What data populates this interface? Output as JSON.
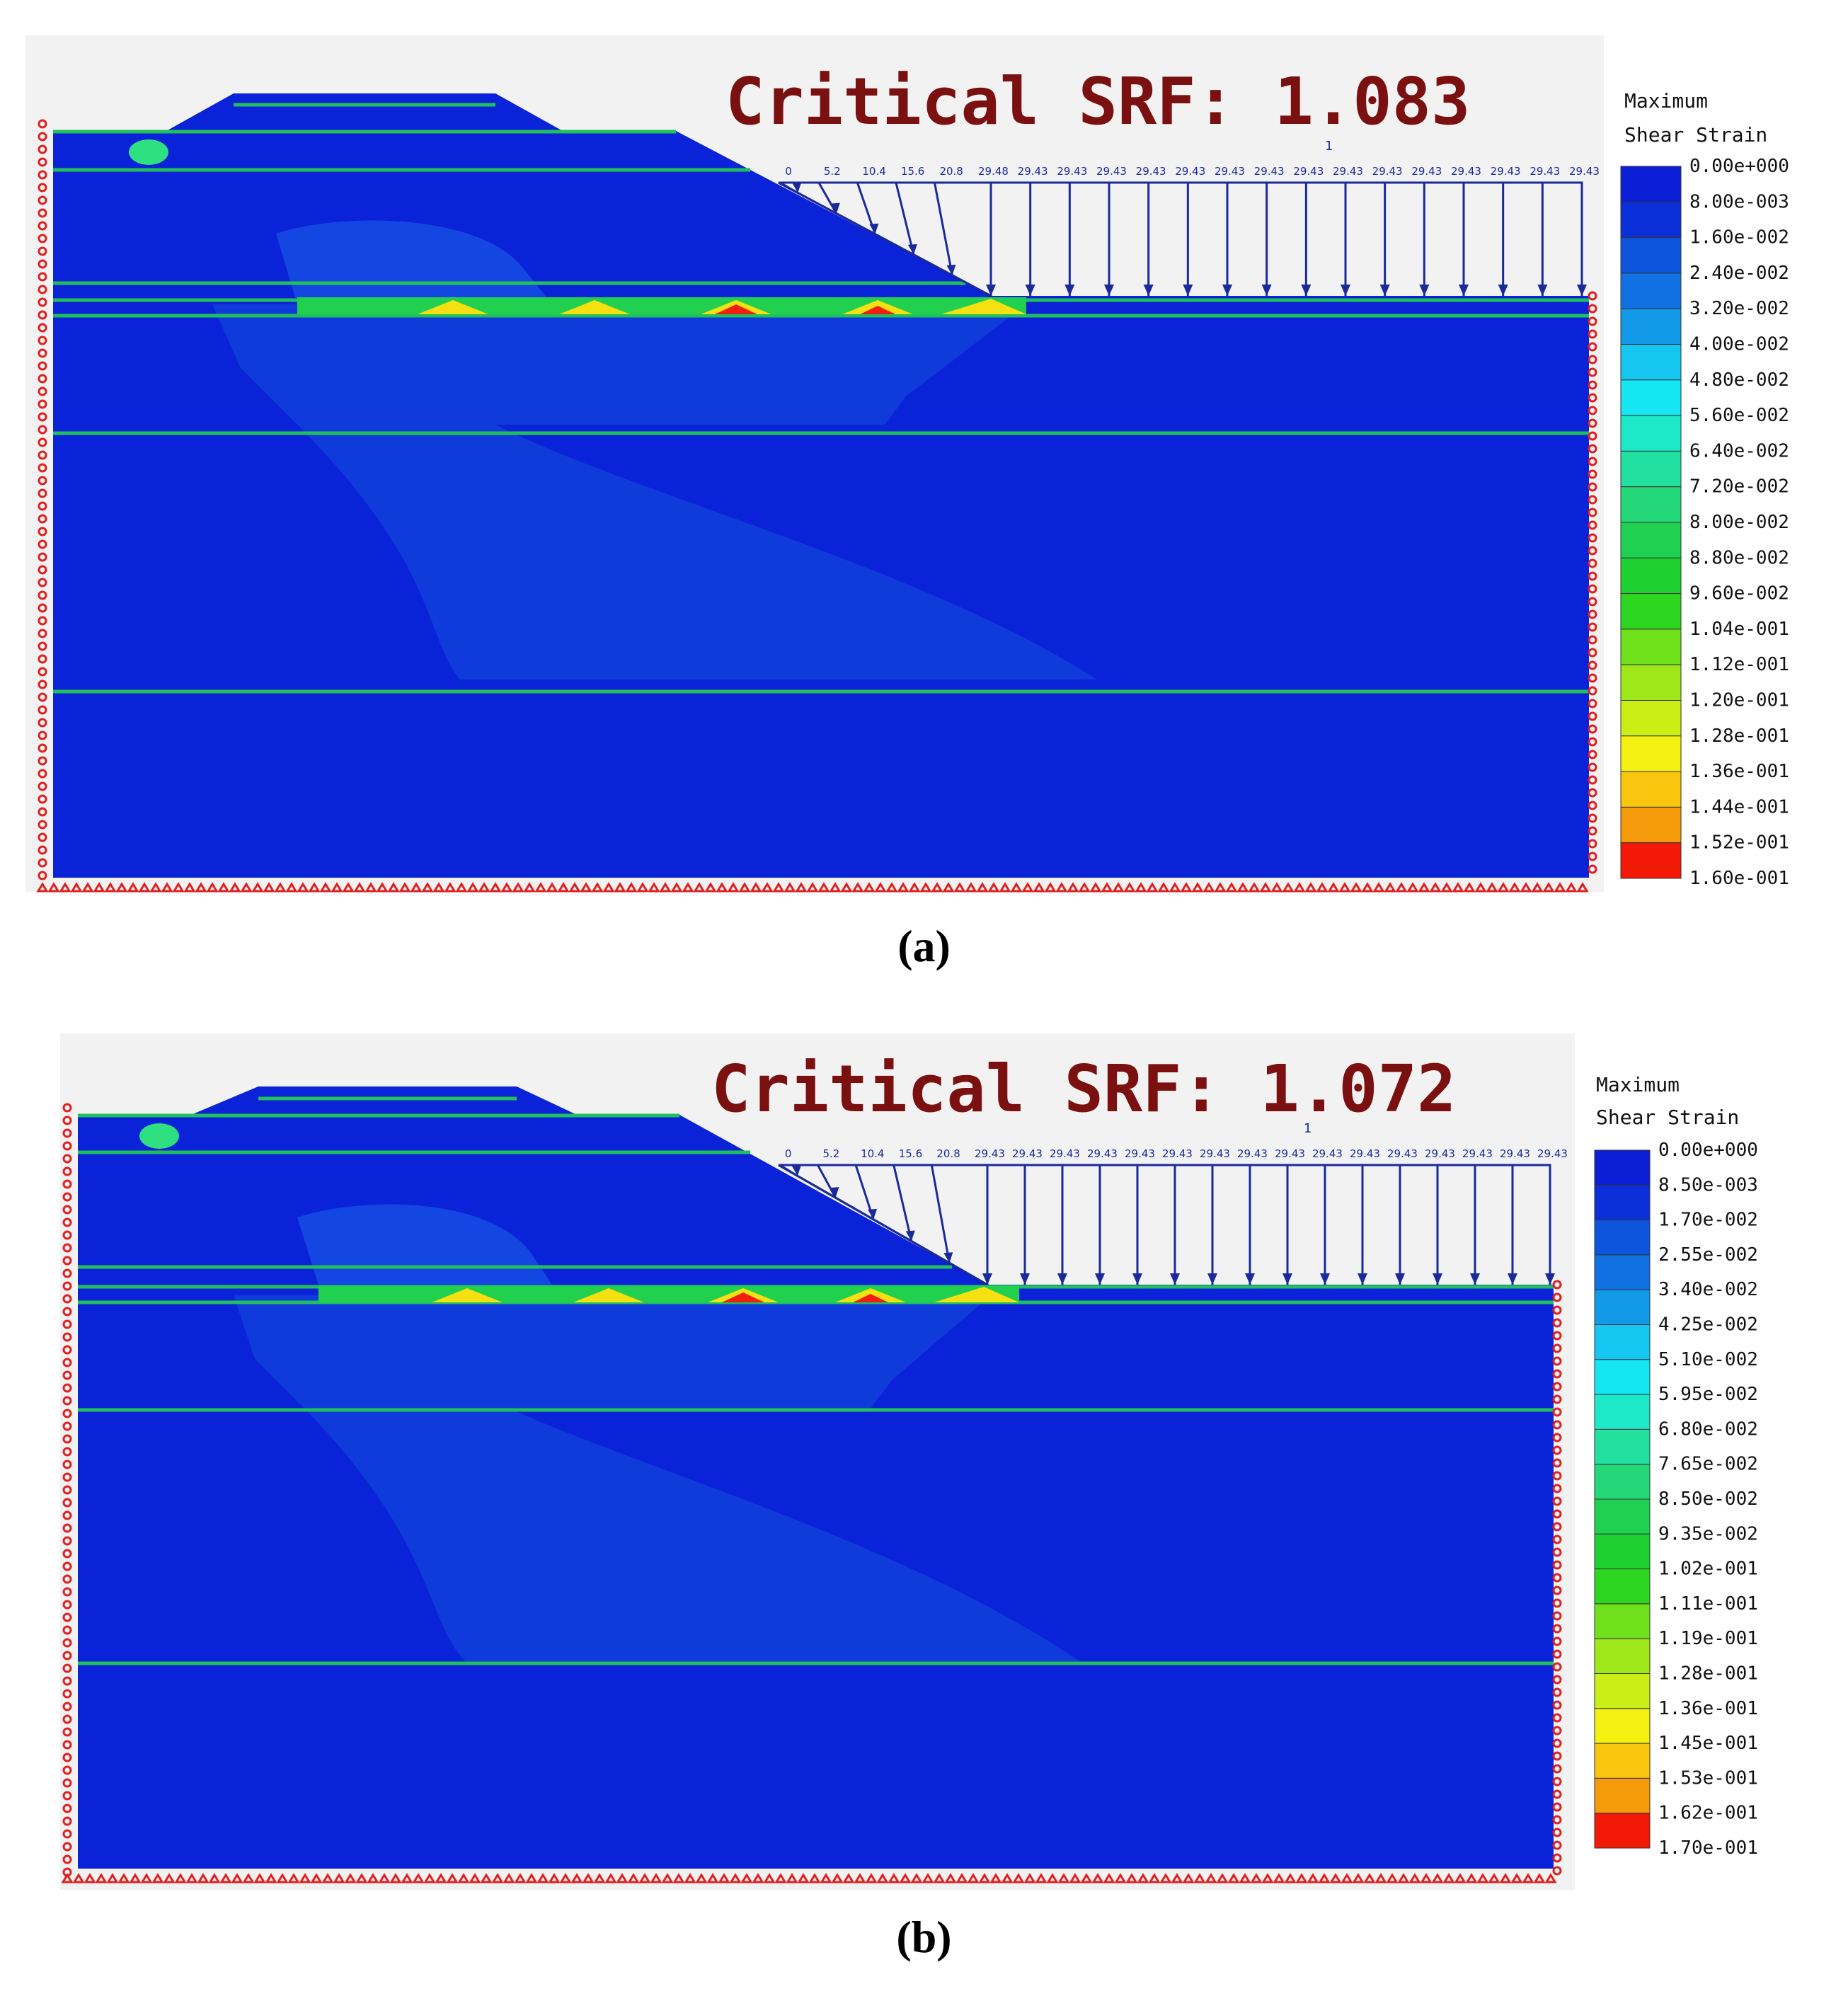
{
  "panels": [
    {
      "id": "a",
      "title": "Critical SRF: 1.083",
      "caption": "(a)",
      "legend_title": [
        "Maximum",
        "Shear Strain"
      ],
      "legend_values": [
        "0.00e+000",
        "8.00e-003",
        "1.60e-002",
        "2.40e-002",
        "3.20e-002",
        "4.00e-002",
        "4.80e-002",
        "5.60e-002",
        "6.40e-002",
        "7.20e-002",
        "8.00e-002",
        "8.80e-002",
        "9.60e-002",
        "1.04e-001",
        "1.12e-001",
        "1.20e-001",
        "1.28e-001",
        "1.36e-001",
        "1.44e-001",
        "1.52e-001",
        "1.60e-001"
      ],
      "load_labels": [
        "0",
        "5.2",
        "10.4",
        "15.6",
        "20.8",
        "29.48",
        "29.43",
        "29.43",
        "29.43",
        "29.43",
        "29.43",
        "29.43",
        "29.43",
        "29.43",
        "29.43",
        "29.43",
        "29.43",
        "29.43",
        "29.43",
        "29.43",
        "29.43"
      ],
      "water_marker": "1"
    },
    {
      "id": "b",
      "title": "Critical SRF: 1.072",
      "caption": "(b)",
      "legend_title": [
        "Maximum",
        "Shear Strain"
      ],
      "legend_values": [
        "0.00e+000",
        "8.50e-003",
        "1.70e-002",
        "2.55e-002",
        "3.40e-002",
        "4.25e-002",
        "5.10e-002",
        "5.95e-002",
        "6.80e-002",
        "7.65e-002",
        "8.50e-002",
        "9.35e-002",
        "1.02e-001",
        "1.11e-001",
        "1.19e-001",
        "1.28e-001",
        "1.36e-001",
        "1.45e-001",
        "1.53e-001",
        "1.62e-001",
        "1.70e-001"
      ],
      "load_labels": [
        "0",
        "5.2",
        "10.4",
        "15.6",
        "20.8",
        "29.43",
        "29.43",
        "29.43",
        "29.43",
        "29.43",
        "29.43",
        "29.43",
        "29.43",
        "29.43",
        "29.43",
        "29.43",
        "29.43",
        "29.43",
        "29.43",
        "29.43",
        "29.43"
      ],
      "water_marker": "1"
    }
  ],
  "colors": {
    "legend_scale": [
      "#0a1fd6",
      "#0b2fd8",
      "#0d55dc",
      "#1170e2",
      "#129ae8",
      "#15c6f0",
      "#15e6f2",
      "#1de8c8",
      "#21e0a0",
      "#24d87a",
      "#20d050",
      "#1ed030",
      "#2dd620",
      "#6ee01c",
      "#9ee81a",
      "#cbef16",
      "#f3f012",
      "#f8c60e",
      "#f59a0a",
      "#f46a06",
      "#f21a06"
    ],
    "base_blue": "#0a22d8",
    "zone_blue": "#1244e0",
    "title_color": "#7a1010",
    "load_arrow": "#1a2a9a",
    "boundary_red": "#e02020"
  }
}
